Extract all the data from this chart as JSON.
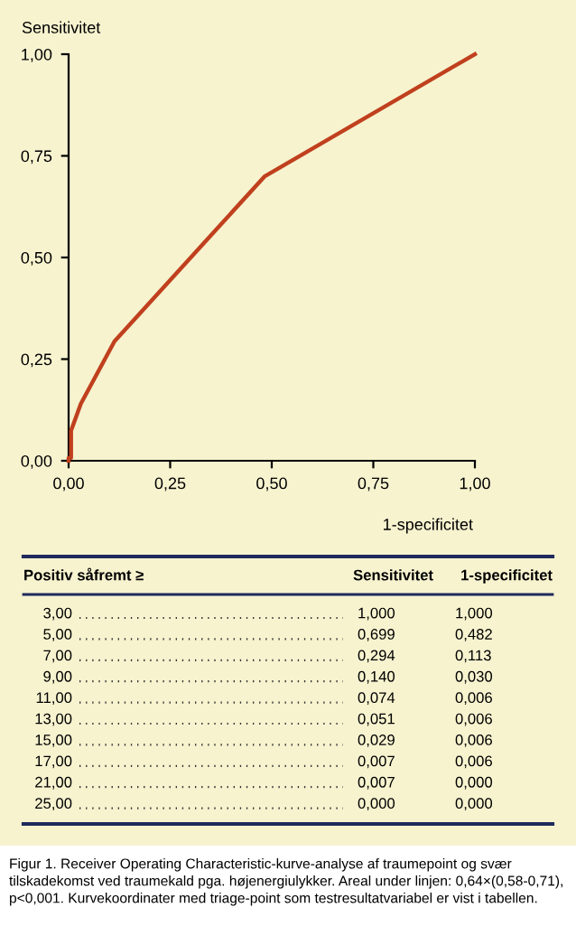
{
  "chart_data": {
    "type": "line",
    "xlabel": "1-specificitet",
    "ylabel": "Sensitivitet",
    "xlim": [
      0,
      1
    ],
    "ylim": [
      0,
      1
    ],
    "xticks": [
      {
        "value": 0,
        "label": "0,00"
      },
      {
        "value": 0.25,
        "label": "0,25"
      },
      {
        "value": 0.5,
        "label": "0,50"
      },
      {
        "value": 0.75,
        "label": "0,75"
      },
      {
        "value": 1,
        "label": "1,00"
      }
    ],
    "yticks": [
      {
        "value": 0,
        "label": "0,00"
      },
      {
        "value": 0.25,
        "label": "0,25"
      },
      {
        "value": 0.5,
        "label": "0,50"
      },
      {
        "value": 0.75,
        "label": "0,75"
      },
      {
        "value": 1,
        "label": "1,00"
      }
    ],
    "grid": false,
    "marker": "none",
    "line_style": "solid",
    "series": [
      {
        "color": "#c0401e",
        "x": [
          1.0,
          0.482,
          0.113,
          0.03,
          0.006,
          0.006,
          0.006,
          0.006,
          0.0,
          0.0
        ],
        "values": [
          1.0,
          0.699,
          0.294,
          0.14,
          0.074,
          0.051,
          0.029,
          0.007,
          0.007,
          0.0
        ]
      }
    ],
    "annotations": [
      "Positiv såfremt ≥",
      "Sensitivitet",
      "1-specificitet",
      "3,00",
      "1,000",
      "1,000",
      "5,00",
      "0,699",
      "0,482",
      "7,00",
      "0,294",
      "0,113",
      "9,00",
      "0,140",
      "0,030",
      "11,00",
      "0,074",
      "0,006",
      "13,00",
      "0,051",
      "0,006",
      "15,00",
      "0,029",
      "0,006",
      "17,00",
      "0,007",
      "0,006",
      "21,00",
      "0,007",
      "0,000",
      "25,00",
      "0,000",
      "0,000",
      "Figur 1. Receiver Operating Characteristic-kurve-analyse af traumepoint og svær tilskadekomst ved traumekald pga. højenergiulykker. Areal under linjen: 0,64×(0,58-0,71), p<0,001. Kurvekoordinater med triage-point som testresultatvariabel er vist i tabellen."
    ]
  }
}
